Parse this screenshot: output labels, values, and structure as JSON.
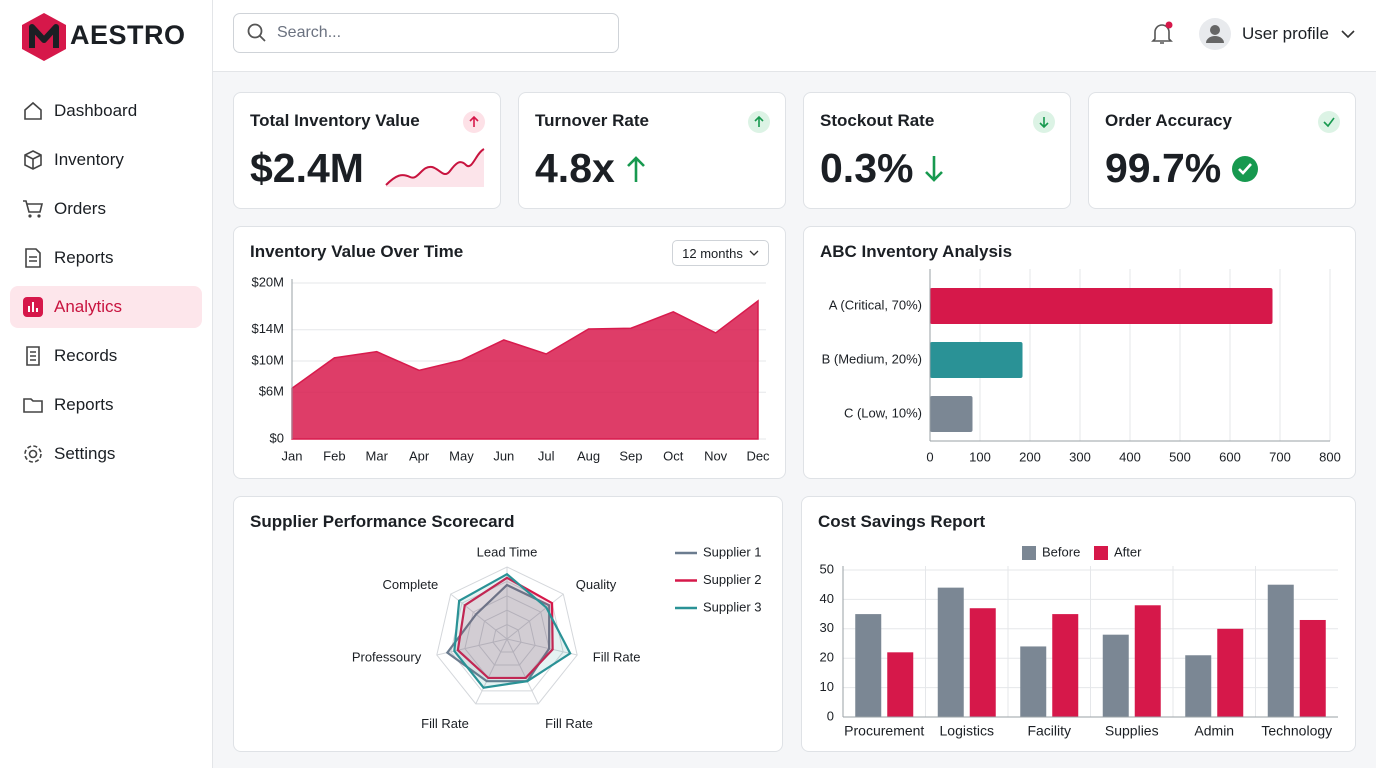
{
  "sidebar": {
    "brand": "AESTRO",
    "nav": [
      "Dashboard",
      "Inventory",
      "Orders",
      "Reports",
      "Analytics",
      "Records",
      "Reports",
      "Settings"
    ]
  },
  "header": {
    "search_placeholder": "Search...",
    "user": "User profile"
  },
  "kpis": [
    {
      "title": "Total Inventory Value",
      "value": "$2.4M"
    },
    {
      "title": "Turnover Rate",
      "value": "4.8x"
    },
    {
      "title": "Stockout Rate",
      "value": "0.3%"
    },
    {
      "title": "Order Accuracy",
      "value": "99.7%"
    }
  ],
  "chart_data": [
    {
      "type": "area",
      "title": "Inventory Value Over Time",
      "control": "12 months",
      "categories": [
        "Jan",
        "Feb",
        "Mar",
        "Apr",
        "May",
        "Jun",
        "Jul",
        "Aug",
        "Sep",
        "Oct",
        "Nov",
        "Dec"
      ],
      "values": [
        6.5,
        10.4,
        11.2,
        8.8,
        10.1,
        12.7,
        10.9,
        14.1,
        14.2,
        16.3,
        13.6,
        17.7
      ],
      "color": "#d81b4d",
      "ylim": [
        0,
        20
      ],
      "yticks": [
        {
          "value": 0,
          "label": "$0"
        },
        {
          "value": 6,
          "label": "$6M"
        },
        {
          "value": 10,
          "label": "$10M"
        },
        {
          "value": 14,
          "label": "$14M"
        },
        {
          "value": 20,
          "label": "$20M"
        }
      ],
      "grid": true
    },
    {
      "type": "bar",
      "orientation": "horizontal",
      "title": "ABC Inventory Analysis",
      "categories": [
        "A (Critical, 70%)",
        "B (Medium, 20%)",
        "C (Low, 10%)"
      ],
      "values": [
        685,
        185,
        85
      ],
      "colors": [
        "#d6184a",
        "#2a9296",
        "#7b8794"
      ],
      "xlim": [
        0,
        800
      ],
      "xticks": [
        0,
        100,
        200,
        300,
        400,
        500,
        600,
        700,
        800
      ],
      "grid": true
    },
    {
      "type": "radar",
      "title": "Supplier Performance Scorecard",
      "axes": [
        "Lead Time",
        "Quality",
        "Fill Rate",
        "Fill Rate",
        "Fill Rate",
        "Professoury",
        "Complete"
      ],
      "rlim": [
        0,
        100
      ],
      "series": [
        {
          "name": "Supplier 1",
          "color": "#6b7c8f",
          "values": [
            75,
            75,
            60,
            65,
            65,
            85,
            55
          ]
        },
        {
          "name": "Supplier 2",
          "color": "#d6184a",
          "values": [
            85,
            80,
            65,
            60,
            60,
            70,
            75
          ]
        },
        {
          "name": "Supplier 3",
          "color": "#2a9296",
          "values": [
            90,
            70,
            90,
            65,
            75,
            75,
            85
          ]
        }
      ]
    },
    {
      "type": "bar",
      "title": "Cost Savings Report",
      "categories": [
        "Procurement",
        "Logistics",
        "Facility",
        "Supplies",
        "Admin",
        "Technology"
      ],
      "series": [
        {
          "name": "Before",
          "color": "#7b8794",
          "values": [
            35,
            44,
            24,
            28,
            21,
            45
          ]
        },
        {
          "name": "After",
          "color": "#d6184a",
          "values": [
            22,
            37,
            35,
            38,
            30,
            33
          ]
        }
      ],
      "ylim": [
        0,
        50
      ],
      "yticks": [
        0,
        10,
        20,
        30,
        40,
        50
      ],
      "grid": true
    }
  ]
}
